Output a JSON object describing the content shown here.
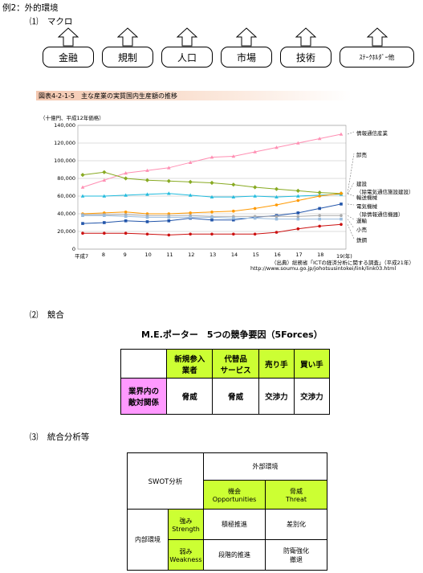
{
  "heading": "例2：外的環境",
  "section1": {
    "num": "⑴",
    "label": "マクロ",
    "boxes": [
      "金融",
      "規制",
      "人口",
      "市場",
      "技術",
      "ｽﾃｰｸﾎﾙﾀﾞｰ他"
    ]
  },
  "chart_caption": "図表4-2-1-5　主な産業の実質国内生産額の推移",
  "chart_data": {
    "type": "line",
    "unit_label": "（十億円、平成12年価格）",
    "x": [
      "平成7",
      "8",
      "9",
      "10",
      "11",
      "12",
      "13",
      "14",
      "15",
      "16",
      "17",
      "18",
      "19(年)"
    ],
    "ylim": [
      0,
      140000
    ],
    "yticks": [
      "0",
      "20,000",
      "40,000",
      "60,000",
      "80,000",
      "100,000",
      "120,000",
      "140,000"
    ],
    "series": [
      {
        "name": "情報通信産業",
        "color": "#ff8fb3",
        "marker": "triangle",
        "values": [
          70000,
          78000,
          86000,
          89000,
          92000,
          98000,
          104000,
          105000,
          110000,
          115000,
          120000,
          125000,
          130000
        ]
      },
      {
        "name": "卸売",
        "color": "#88aa22",
        "marker": "diamond",
        "values": [
          84000,
          87000,
          80000,
          78000,
          77000,
          76000,
          75000,
          73000,
          70000,
          68000,
          66000,
          64000,
          63000
        ]
      },
      {
        "name": "建設（除電気通信施設建設）",
        "color": "#22bbdd",
        "marker": "triangle",
        "values": [
          60000,
          60000,
          61000,
          62000,
          63000,
          61000,
          59000,
          59000,
          60000,
          59000,
          60000,
          61000,
          62000
        ]
      },
      {
        "name": "輸送機械",
        "color": "#ff9900",
        "marker": "circle",
        "values": [
          40000,
          41000,
          42000,
          40000,
          40000,
          41000,
          42000,
          43000,
          46000,
          50000,
          55000,
          60000,
          63000
        ]
      },
      {
        "name": "電気機械（除情報通信機器）",
        "color": "#2255aa",
        "marker": "square",
        "values": [
          29000,
          30000,
          32000,
          31000,
          32000,
          35000,
          33000,
          33000,
          36000,
          38000,
          41000,
          46000,
          51000
        ]
      },
      {
        "name": "運輸",
        "color": "#aaaaaa",
        "marker": "circle",
        "values": [
          39000,
          39000,
          39000,
          38000,
          38000,
          38000,
          37000,
          37000,
          37000,
          37000,
          37000,
          38000,
          38000
        ]
      },
      {
        "name": "小売",
        "color": "#99bbdd",
        "marker": "square",
        "values": [
          38000,
          38000,
          37000,
          36000,
          36000,
          36000,
          36000,
          35000,
          35000,
          34000,
          34000,
          34000,
          34000
        ]
      },
      {
        "name": "鉄鋼",
        "color": "#cc1111",
        "marker": "circle",
        "values": [
          18000,
          18000,
          18000,
          17000,
          16000,
          17000,
          17000,
          17000,
          17000,
          19000,
          23000,
          26000,
          28000
        ]
      }
    ]
  },
  "chart_source_1": "（出典）総務省「ICTの経済分析に関する調査」（平成21年）",
  "chart_source_2": "http://www.soumu.go.jp/johotsusintokei/link/link03.html",
  "section2": {
    "num": "⑵",
    "label": "競合",
    "title": "M.E.ポーター　5つの競争要因（5Forces）",
    "headers": [
      "新規参入\n業者",
      "代替品\nサービス",
      "売り手",
      "買い手"
    ],
    "row_label": "業界内の\n敵対関係",
    "cells": [
      "脅威",
      "脅威",
      "交渉力",
      "交渉力"
    ]
  },
  "section3": {
    "num": "⑶",
    "label": "統合分析等",
    "swot": "SWOT分析",
    "external": "外部環境",
    "opp": "機会\nOpportunities",
    "threat": "脅威\nThreat",
    "internal": "内部環境",
    "strength": "強み\nStrength",
    "weakness": "弱み\nWeakness",
    "so": "積極推進",
    "st": "差別化",
    "wo": "段階的推進",
    "wt": "防衛強化\n撤退"
  }
}
